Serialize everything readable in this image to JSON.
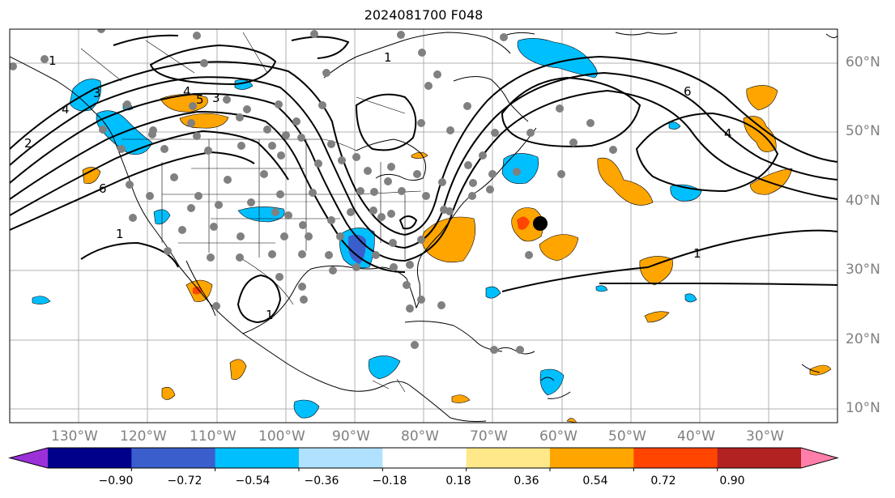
{
  "title": "2024081700 F048",
  "lat_labels": [
    "60°N",
    "50°N",
    "40°N",
    "30°N",
    "20°N",
    "10°N"
  ],
  "lon_labels": [
    "130°W",
    "120°W",
    "110°W",
    "100°W",
    "90°W",
    "80°W",
    "70°W",
    "60°W",
    "50°W",
    "40°W",
    "30°W"
  ],
  "contour_labels": [
    "1",
    "2",
    "3",
    "4",
    "5",
    "6",
    "1",
    "4",
    "6",
    "1",
    "1",
    "1",
    "3",
    "4"
  ],
  "colorbar": {
    "ticks": [
      "−0.90",
      "−0.72",
      "−0.54",
      "−0.36",
      "−0.18",
      "0.18",
      "0.36",
      "0.54",
      "0.72",
      "0.90"
    ],
    "colors": [
      "#9b30d9",
      "#00008b",
      "#3a5fcd",
      "#00bfff",
      "#b0e2ff",
      "#ffffff",
      "#ffe88a",
      "#ffa500",
      "#ff4500",
      "#b22222",
      "#ff7faa"
    ]
  },
  "colors": {
    "positive_fill": "#ffa500",
    "positive_strong": "#ff4500",
    "negative_fill": "#00bfff",
    "negative_strong": "#3a5fcd",
    "station_dot": "#808080",
    "storm_marker": "#000000"
  }
}
